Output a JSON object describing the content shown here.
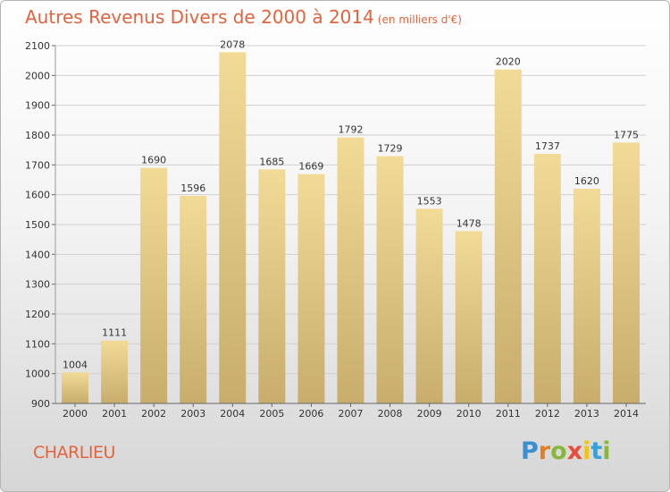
{
  "title": "Autres Revenus Divers de 2000 à 2014",
  "subtitle": "(en milliers d'€)",
  "city": "CHARLIEU",
  "logo": {
    "letters": [
      "P",
      "r",
      "o",
      "x",
      "i",
      "t",
      "i"
    ],
    "colors": [
      "#3a8fd0",
      "#e67e22",
      "#88b73b",
      "#e74c3c",
      "#f1c40f",
      "#3aa0d8",
      "#88b73b"
    ]
  },
  "colors": {
    "bar_top": "#f2da97",
    "bar_bottom": "#c8ad6c",
    "grid": "#cfcfcf",
    "accent": "#e1643e"
  },
  "chart_data": {
    "type": "bar",
    "title": "Autres Revenus Divers de 2000 à 2014",
    "categories": [
      "2000",
      "2001",
      "2002",
      "2003",
      "2004",
      "2005",
      "2006",
      "2007",
      "2008",
      "2009",
      "2010",
      "2011",
      "2012",
      "2013",
      "2014"
    ],
    "values": [
      1004,
      1111,
      1690,
      1596,
      2078,
      1685,
      1669,
      1792,
      1729,
      1553,
      1478,
      2020,
      1737,
      1620,
      1775
    ],
    "xlabel": "",
    "ylabel": "",
    "ylim": [
      900,
      2100
    ],
    "yticks": [
      900,
      1000,
      1100,
      1200,
      1300,
      1400,
      1500,
      1600,
      1700,
      1800,
      1900,
      2000,
      2100
    ],
    "grid": true,
    "legend": "none"
  }
}
